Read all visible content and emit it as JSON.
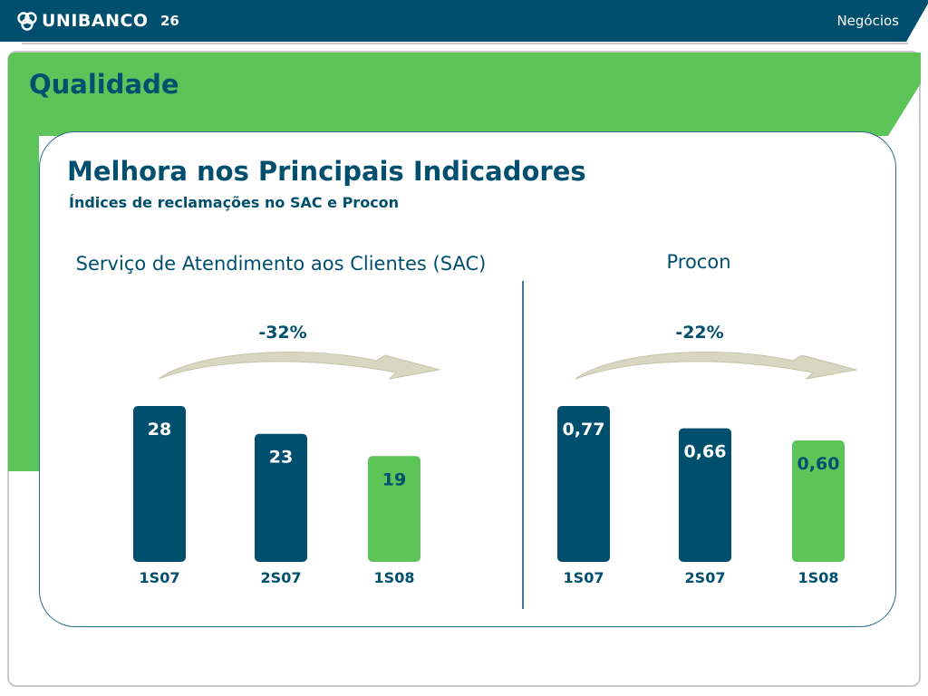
{
  "header": {
    "brand": "UNIBANCO",
    "page_number": "26",
    "section": "Negócios",
    "color": "#004f6e"
  },
  "slide": {
    "title": "Qualidade",
    "accent_color": "#5dc45a"
  },
  "panel": {
    "heading": "Melhora nos Principais Indicadores",
    "subheading": "Índices de reclamações no SAC e Procon"
  },
  "chart_data": [
    {
      "type": "bar",
      "title": "Serviço de Atendimento aos Clientes (SAC)",
      "categories": [
        "1S07",
        "2S07",
        "1S08"
      ],
      "values": [
        28,
        23,
        19
      ],
      "value_labels": [
        "28",
        "23",
        "19"
      ],
      "change_label": "-32%",
      "colors": [
        "#004f6e",
        "#004f6e",
        "#5dc45a"
      ],
      "ylim": [
        0,
        28
      ]
    },
    {
      "type": "bar",
      "title": "Procon",
      "categories": [
        "1S07",
        "2S07",
        "1S08"
      ],
      "values": [
        0.77,
        0.66,
        0.6
      ],
      "value_labels": [
        "0,77",
        "0,66",
        "0,60"
      ],
      "change_label": "-22%",
      "colors": [
        "#004f6e",
        "#004f6e",
        "#5dc45a"
      ],
      "ylim": [
        0,
        0.77
      ]
    }
  ]
}
